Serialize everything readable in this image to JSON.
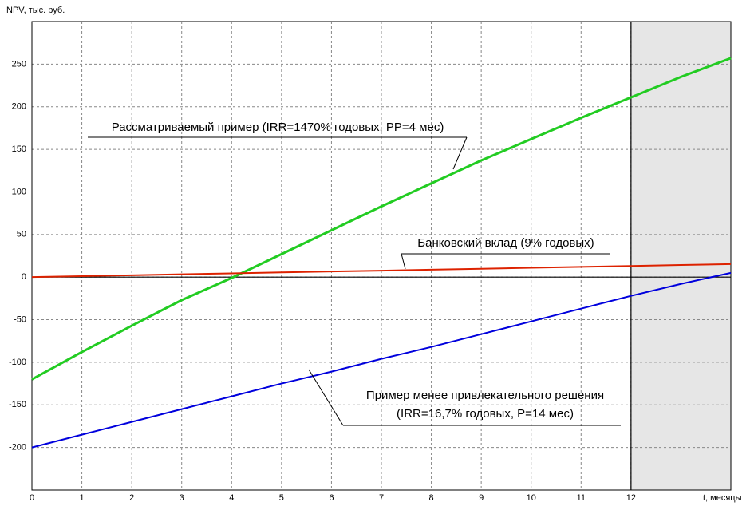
{
  "chart_data": {
    "type": "line",
    "xlabel": "t, месяцы",
    "ylabel": "NPV, тыс. руб.",
    "x": [
      0,
      1,
      2,
      3,
      4,
      5,
      6,
      7,
      8,
      9,
      10,
      11,
      12,
      13,
      14
    ],
    "series": [
      {
        "color": "#22cc22",
        "values": [
          -120,
          -88,
          -57,
          -27,
          -1,
          27,
          55,
          83,
          110,
          137,
          162,
          187,
          211,
          235,
          257
        ]
      },
      {
        "color": "#dd2200",
        "values": [
          0,
          1.1,
          2.2,
          3.3,
          4.4,
          5.5,
          6.6,
          7.6,
          8.7,
          9.8,
          10.9,
          12,
          13,
          14.2,
          15.3
        ]
      },
      {
        "color": "#0000dd",
        "values": [
          -200,
          -185,
          -170,
          -155,
          -140,
          -125,
          -111,
          -96,
          -82,
          -67,
          -52,
          -37,
          -22,
          -8,
          5
        ]
      }
    ],
    "annotations": [
      {
        "text": "Рассматриваемый пример (IRR=1470% годовых, PP=4 мес)"
      },
      {
        "text": "Банковский вклад (9% годовых)"
      },
      {
        "text": "Пример менее привлекательного решения",
        "text2": "(IRR=16,7% годовых, P=14 мес)"
      }
    ],
    "xlim": [
      0,
      14
    ],
    "ylim": [
      -250,
      300
    ],
    "xticks": [
      0,
      1,
      2,
      3,
      4,
      5,
      6,
      7,
      8,
      9,
      10,
      11,
      12
    ],
    "yticks": [
      -200,
      -150,
      -100,
      -50,
      0,
      50,
      100,
      150,
      200,
      250
    ],
    "grid": true,
    "shade_x": [
      12,
      14
    ],
    "shade_color": "#e6e6e6"
  }
}
